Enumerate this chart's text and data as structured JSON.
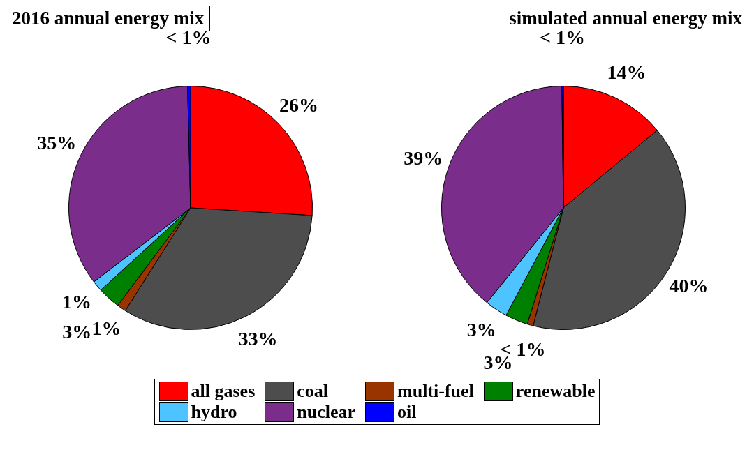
{
  "chart_data": [
    {
      "type": "pie",
      "title": "2016 annual energy mix",
      "categories": [
        "all gases",
        "coal",
        "multi-fuel",
        "renewable",
        "hydro",
        "nuclear",
        "oil"
      ],
      "values": [
        26,
        33,
        1.2,
        3,
        1.4,
        35,
        0.4
      ],
      "value_labels": [
        "26%",
        "33%",
        "1%",
        "3%",
        "1%",
        "35%",
        "< 1%"
      ],
      "colors": [
        "#ff0000",
        "#4d4d4d",
        "#993300",
        "#008000",
        "#4dc3ff",
        "#7b2d8b",
        "#0000ff"
      ],
      "legend": "bottom"
    },
    {
      "type": "pie",
      "title": "simulated annual energy mix",
      "categories": [
        null,
        null,
        null,
        null,
        null,
        null,
        null
      ],
      "values": [
        14,
        40,
        0.8,
        3,
        3,
        39,
        0.2
      ],
      "value_labels": [
        "14%",
        "40%",
        "< 1%",
        "3%",
        "3%",
        "39%",
        "< 1%"
      ],
      "colors": [
        "#ff0000",
        "#4d4d4d",
        "#993300",
        "#008000",
        "#4dc3ff",
        "#7b2d8b",
        "#0000ff"
      ]
    }
  ]
}
